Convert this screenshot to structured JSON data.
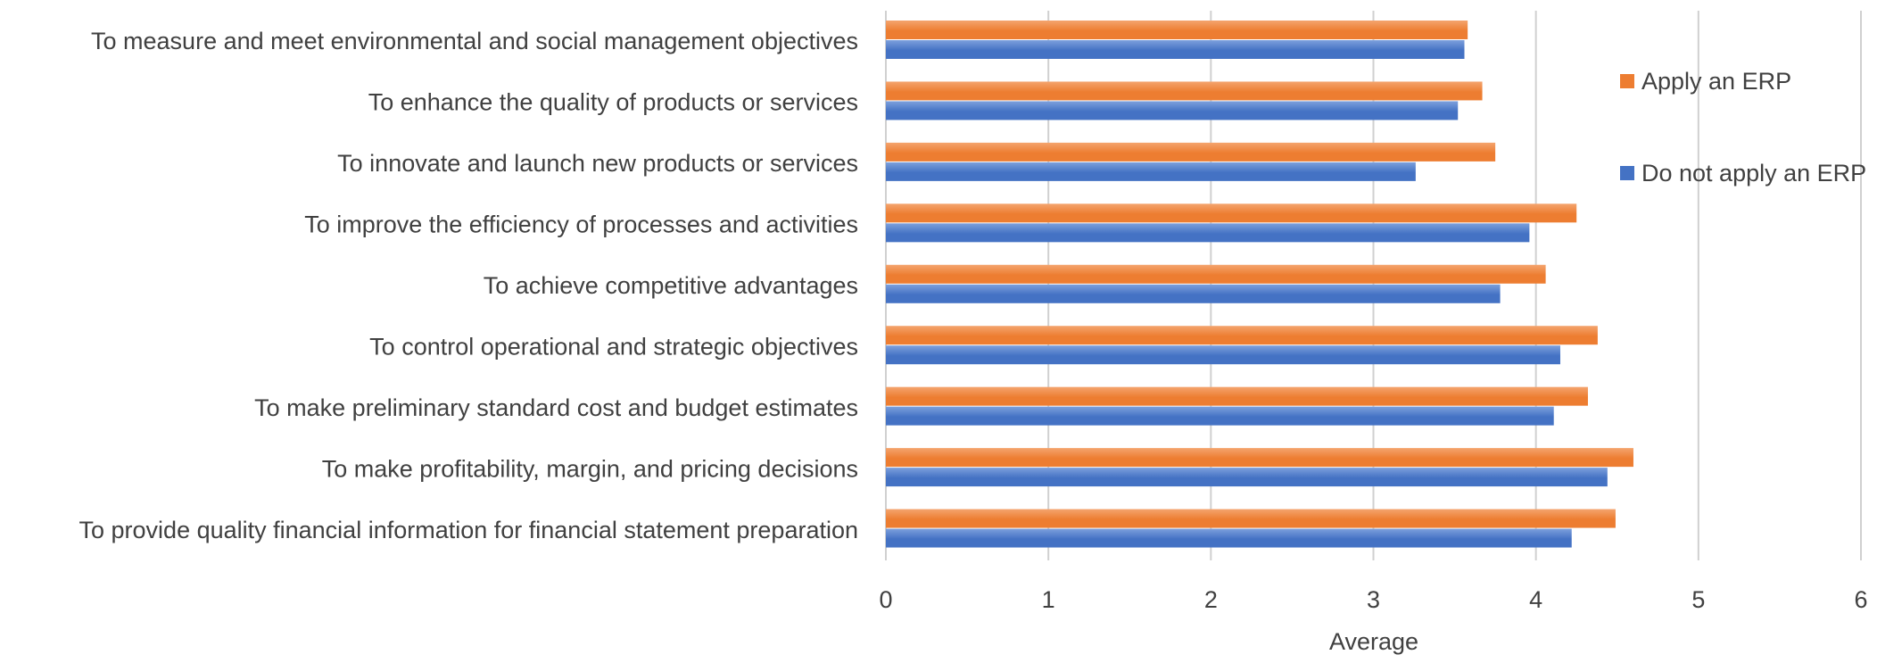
{
  "chart_data": {
    "type": "bar",
    "orientation": "horizontal",
    "title": "",
    "xlabel": "Average",
    "ylabel": "",
    "xlim": [
      0,
      6
    ],
    "x_ticks": [
      "0",
      "1",
      "2",
      "3",
      "4",
      "5",
      "6"
    ],
    "grid": true,
    "legend_position": "right",
    "categories": [
      "To measure and meet environmental and social management objectives",
      "To enhance the quality of products or services",
      "To innovate and launch new products or services",
      "To improve the efficiency of processes and activities",
      "To achieve competitive advantages",
      "To control operational and strategic objectives",
      "To make preliminary standard cost and budget estimates",
      "To make profitability, margin, and pricing decisions",
      "To provide quality financial information for financial statement preparation"
    ],
    "series": [
      {
        "name": "Apply an ERP",
        "color": "#ED7D31",
        "values": [
          3.58,
          3.67,
          3.75,
          4.25,
          4.06,
          4.38,
          4.32,
          4.6,
          4.49
        ]
      },
      {
        "name": "Do not apply an ERP",
        "color": "#4472C4",
        "values": [
          3.56,
          3.52,
          3.26,
          3.96,
          3.78,
          4.15,
          4.11,
          4.44,
          4.22
        ]
      }
    ]
  }
}
